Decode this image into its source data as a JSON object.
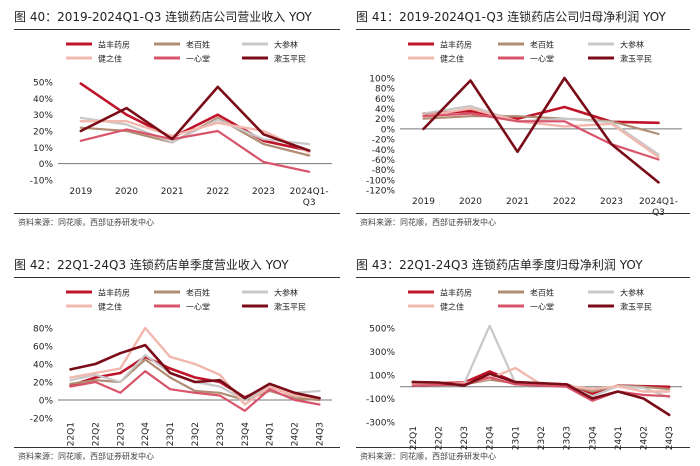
{
  "colors": {
    "益丰药房": "#C0142A",
    "老百姓": "#B08C72",
    "大参林": "#C8C8C8",
    "健之佳": "#F2B8AE",
    "一心堂": "#D9546A",
    "漱玉平民": "#7A0C18"
  },
  "chart_data": [
    {
      "type": "line",
      "title": "图 40：2019-2024Q1-Q3 连锁药店公司营业收入 YOY",
      "source": "资料来源：同花顺，西部证券研发中心",
      "categories": [
        "2019",
        "2020",
        "2021",
        "2022",
        "2023",
        "2024Q1-Q3"
      ],
      "category_lines": [
        [
          "2019"
        ],
        [
          "2020"
        ],
        [
          "2021"
        ],
        [
          "2022"
        ],
        [
          "2023"
        ],
        [
          "2024Q1-",
          "Q3"
        ]
      ],
      "ylim": [
        -10,
        50
      ],
      "yticks": [
        -10,
        0,
        10,
        20,
        30,
        40,
        50
      ],
      "yformat": "pct",
      "rotate": false,
      "series": [
        {
          "name": "益丰药房",
          "values": [
            49,
            30,
            16,
            30,
            14,
            8
          ]
        },
        {
          "name": "老百姓",
          "values": [
            22,
            20,
            13,
            28,
            12,
            5
          ]
        },
        {
          "name": "大参林",
          "values": [
            28,
            24,
            13,
            27,
            15,
            12
          ]
        },
        {
          "name": "健之佳",
          "values": [
            26,
            26,
            17,
            25,
            20,
            7
          ]
        },
        {
          "name": "一心堂",
          "values": [
            14,
            21,
            15,
            20,
            1,
            -5
          ]
        },
        {
          "name": "漱玉平民",
          "values": [
            20,
            34,
            15,
            47,
            18,
            8
          ]
        }
      ]
    },
    {
      "type": "line",
      "title": "图 41：2019-2024Q1-Q3 连锁药店公司归母净利润 YOY",
      "source": "资料来源：同花顺，西部证券研发中心",
      "categories": [
        "2019",
        "2020",
        "2021",
        "2022",
        "2023",
        "2024Q1-Q3"
      ],
      "category_lines": [
        [
          "2019"
        ],
        [
          "2020"
        ],
        [
          "2021"
        ],
        [
          "2022"
        ],
        [
          "2023"
        ],
        [
          "2024Q1-",
          "Q3"
        ]
      ],
      "ylim": [
        -120,
        100
      ],
      "yticks": [
        -120,
        -100,
        -80,
        -60,
        -40,
        -20,
        0,
        20,
        40,
        60,
        80,
        100
      ],
      "yformat": "pct",
      "rotate": false,
      "series": [
        {
          "name": "益丰药房",
          "values": [
            30,
            35,
            20,
            43,
            14,
            12
          ]
        },
        {
          "name": "老百姓",
          "values": [
            20,
            25,
            25,
            20,
            15,
            -10
          ]
        },
        {
          "name": "大参林",
          "values": [
            30,
            45,
            15,
            20,
            13,
            -50
          ]
        },
        {
          "name": "健之佳",
          "values": [
            25,
            40,
            15,
            5,
            10,
            -55
          ]
        },
        {
          "name": "一心堂",
          "values": [
            25,
            30,
            15,
            15,
            -30,
            -60
          ]
        },
        {
          "name": "漱玉平民",
          "values": [
            0,
            95,
            -45,
            100,
            -30,
            -105
          ]
        }
      ]
    },
    {
      "type": "line",
      "title": "图 42：22Q1-24Q3 连锁药店单季度营业收入 YOY",
      "source": "资料来源：同花顺，西部证券研发中心",
      "categories": [
        "22Q1",
        "22Q2",
        "22Q3",
        "22Q4",
        "23Q1",
        "23Q2",
        "23Q3",
        "23Q4",
        "24Q1",
        "24Q2",
        "24Q3"
      ],
      "ylim": [
        -20,
        80
      ],
      "yticks": [
        -20,
        0,
        20,
        40,
        60,
        80
      ],
      "yformat": "pct",
      "rotate": true,
      "series": [
        {
          "name": "益丰药房",
          "values": [
            16,
            25,
            30,
            48,
            35,
            25,
            20,
            3,
            15,
            5,
            2
          ]
        },
        {
          "name": "老百姓",
          "values": [
            18,
            22,
            20,
            45,
            25,
            10,
            8,
            0,
            10,
            2,
            0
          ]
        },
        {
          "name": "大参林",
          "values": [
            22,
            28,
            20,
            50,
            30,
            20,
            15,
            0,
            15,
            8,
            10
          ]
        },
        {
          "name": "健之佳",
          "values": [
            25,
            30,
            35,
            80,
            48,
            40,
            28,
            -5,
            15,
            5,
            2
          ]
        },
        {
          "name": "一心堂",
          "values": [
            15,
            20,
            8,
            32,
            12,
            8,
            5,
            -12,
            12,
            0,
            -5
          ]
        },
        {
          "name": "漱玉平民",
          "values": [
            34,
            40,
            52,
            61,
            30,
            20,
            22,
            2,
            18,
            8,
            2
          ]
        }
      ]
    },
    {
      "type": "line",
      "title": "图 43：22Q1-24Q3 连锁药店单季度归母净利润 YOY",
      "source": "资料来源：同花顺，西部证券研发中心",
      "categories": [
        "22Q1",
        "22Q2",
        "22Q3",
        "22Q4",
        "23Q1",
        "23Q2",
        "23Q3",
        "23Q4",
        "24Q1",
        "24Q2",
        "24Q3"
      ],
      "ylim": [
        -300,
        500
      ],
      "yticks": [
        -300,
        -100,
        100,
        300,
        500
      ],
      "yformat": "pct",
      "rotate": true,
      "series": [
        {
          "name": "益丰药房",
          "values": [
            40,
            30,
            35,
            130,
            40,
            25,
            20,
            -60,
            10,
            5,
            0
          ]
        },
        {
          "name": "老百姓",
          "values": [
            20,
            15,
            20,
            60,
            30,
            20,
            15,
            -40,
            10,
            0,
            -20
          ]
        },
        {
          "name": "大参林",
          "values": [
            30,
            20,
            25,
            520,
            30,
            20,
            10,
            -80,
            5,
            -10,
            -90
          ]
        },
        {
          "name": "健之佳",
          "values": [
            20,
            20,
            30,
            70,
            160,
            20,
            10,
            -20,
            5,
            -40,
            -40
          ]
        },
        {
          "name": "一心堂",
          "values": [
            10,
            15,
            20,
            80,
            20,
            10,
            0,
            -120,
            -40,
            -70,
            -80
          ]
        },
        {
          "name": "漱玉平民",
          "values": [
            40,
            35,
            10,
            110,
            40,
            30,
            20,
            -100,
            -40,
            -100,
            -240
          ]
        }
      ]
    }
  ]
}
